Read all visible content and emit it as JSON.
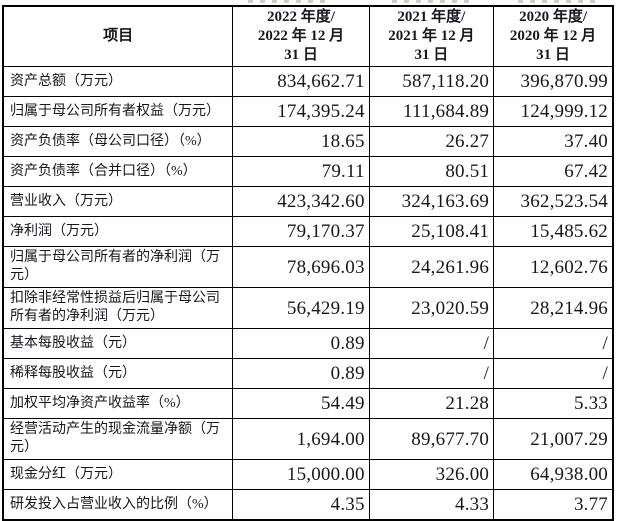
{
  "table": {
    "border_color": "#000000",
    "text_color": "#17171f",
    "header": [
      {
        "label": "项目"
      },
      {
        "label": "2022 年度/\n2022 年 12 月\n31 日"
      },
      {
        "label": "2021 年度/\n2021 年 12 月\n31 日"
      },
      {
        "label": "2020 年度/\n2020 年 12 月\n31 日"
      }
    ],
    "rows": [
      {
        "item": "资产总额（万元）",
        "values": [
          "834,662.71",
          "587,118.20",
          "396,870.99"
        ]
      },
      {
        "item": "归属于母公司所有者权益（万元）",
        "values": [
          "174,395.24",
          "111,684.89",
          "124,999.12"
        ]
      },
      {
        "item": "资产负债率（母公司口径）（%）",
        "values": [
          "18.65",
          "26.27",
          "37.40"
        ]
      },
      {
        "item": "资产负债率（合并口径）（%）",
        "values": [
          "79.11",
          "80.51",
          "67.42"
        ]
      },
      {
        "item": "营业收入（万元）",
        "values": [
          "423,342.60",
          "324,163.69",
          "362,523.54"
        ]
      },
      {
        "item": "净利润（万元）",
        "values": [
          "79,170.37",
          "25,108.41",
          "15,485.62"
        ]
      },
      {
        "item": "归属于母公司所有者的净利润（万元）",
        "values": [
          "78,696.03",
          "24,261.96",
          "12,602.76"
        ]
      },
      {
        "item": "扣除非经常性损益后归属于母公司所有者的净利润（万元）",
        "values": [
          "56,429.19",
          "23,020.59",
          "28,214.96"
        ]
      },
      {
        "item": "基本每股收益（元）",
        "values": [
          "0.89",
          "/",
          "/"
        ]
      },
      {
        "item": "稀释每股收益（元）",
        "values": [
          "0.89",
          "/",
          "/"
        ]
      },
      {
        "item": "加权平均净资产收益率（%）",
        "values": [
          "54.49",
          "21.28",
          "5.33"
        ]
      },
      {
        "item": "经营活动产生的现金流量净额（万元）",
        "values": [
          "1,694.00",
          "89,677.70",
          "21,007.29"
        ]
      },
      {
        "item": "现金分红（万元）",
        "values": [
          "15,000.00",
          "326.00",
          "64,938.00"
        ]
      },
      {
        "item": "研发投入占营业收入的比例（%）",
        "values": [
          "4.35",
          "4.33",
          "3.77"
        ]
      }
    ]
  }
}
